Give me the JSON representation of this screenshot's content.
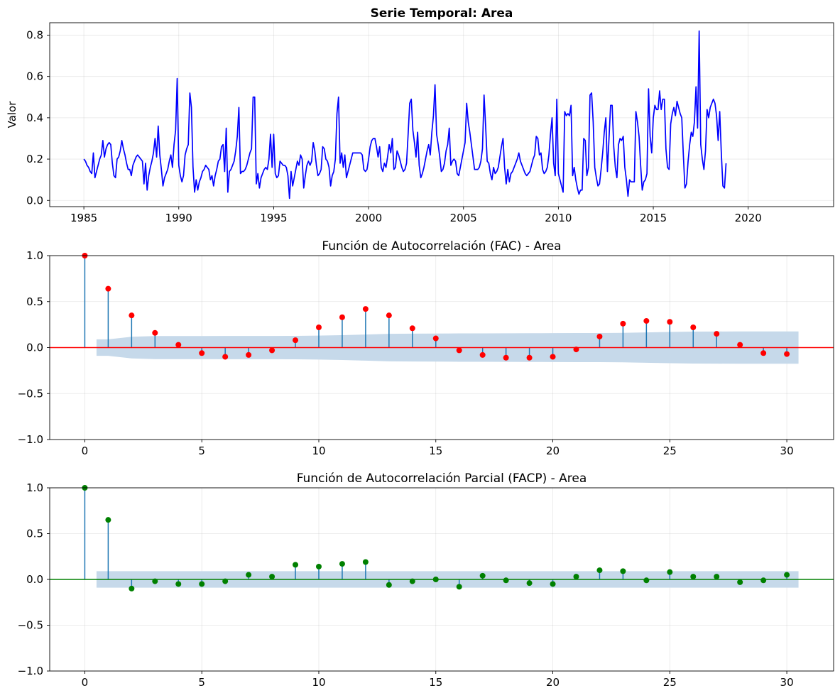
{
  "chart_data": [
    {
      "id": "series",
      "type": "line",
      "title": "Serie Temporal: Area",
      "ylabel": "Valor",
      "xlabel": "",
      "xlim": [
        1983.2,
        2024.5
      ],
      "ylim": [
        -0.03,
        0.86
      ],
      "xticks": [
        1985,
        1990,
        1995,
        2000,
        2005,
        2010,
        2015,
        2020
      ],
      "xtick_labels": [
        "1985",
        "1990",
        "1995",
        "2000",
        "2005",
        "2010",
        "2015",
        "2020"
      ],
      "yticks": [
        0.0,
        0.2,
        0.4,
        0.6,
        0.8
      ],
      "ytick_labels": [
        "0.0",
        "0.2",
        "0.4",
        "0.6",
        "0.8"
      ],
      "grid": true,
      "series": [
        {
          "color": "#0000ff",
          "x_start": 1985.0,
          "x_step": 0.0833333,
          "values": [
            0.2,
            0.19,
            0.17,
            0.16,
            0.14,
            0.13,
            0.23,
            0.11,
            0.14,
            0.17,
            0.2,
            0.22,
            0.29,
            0.21,
            0.25,
            0.27,
            0.28,
            0.27,
            0.18,
            0.12,
            0.11,
            0.2,
            0.21,
            0.24,
            0.29,
            0.25,
            0.22,
            0.18,
            0.15,
            0.15,
            0.12,
            0.17,
            0.19,
            0.21,
            0.22,
            0.21,
            0.2,
            0.19,
            0.08,
            0.18,
            0.05,
            0.12,
            0.16,
            0.19,
            0.23,
            0.3,
            0.21,
            0.36,
            0.22,
            0.15,
            0.07,
            0.11,
            0.13,
            0.15,
            0.19,
            0.22,
            0.16,
            0.27,
            0.34,
            0.59,
            0.17,
            0.12,
            0.09,
            0.12,
            0.22,
            0.25,
            0.27,
            0.52,
            0.45,
            0.16,
            0.04,
            0.1,
            0.05,
            0.09,
            0.11,
            0.14,
            0.15,
            0.17,
            0.16,
            0.15,
            0.1,
            0.12,
            0.07,
            0.12,
            0.15,
            0.19,
            0.2,
            0.26,
            0.27,
            0.14,
            0.35,
            0.04,
            0.14,
            0.15,
            0.17,
            0.19,
            0.24,
            0.31,
            0.45,
            0.13,
            0.14,
            0.14,
            0.15,
            0.17,
            0.2,
            0.23,
            0.25,
            0.5,
            0.5,
            0.08,
            0.13,
            0.06,
            0.11,
            0.13,
            0.15,
            0.16,
            0.15,
            0.2,
            0.32,
            0.16,
            0.32,
            0.13,
            0.11,
            0.12,
            0.19,
            0.18,
            0.17,
            0.17,
            0.16,
            0.12,
            0.01,
            0.14,
            0.07,
            0.11,
            0.15,
            0.19,
            0.17,
            0.22,
            0.2,
            0.06,
            0.12,
            0.17,
            0.19,
            0.17,
            0.19,
            0.28,
            0.24,
            0.17,
            0.12,
            0.13,
            0.15,
            0.26,
            0.25,
            0.2,
            0.19,
            0.16,
            0.07,
            0.12,
            0.14,
            0.2,
            0.42,
            0.5,
            0.18,
            0.23,
            0.16,
            0.22,
            0.11,
            0.14,
            0.17,
            0.2,
            0.23,
            0.23,
            0.23,
            0.23,
            0.23,
            0.23,
            0.22,
            0.15,
            0.14,
            0.15,
            0.2,
            0.26,
            0.29,
            0.3,
            0.3,
            0.26,
            0.21,
            0.26,
            0.16,
            0.14,
            0.18,
            0.16,
            0.21,
            0.27,
            0.23,
            0.3,
            0.15,
            0.16,
            0.24,
            0.22,
            0.19,
            0.16,
            0.14,
            0.15,
            0.18,
            0.32,
            0.47,
            0.49,
            0.34,
            0.28,
            0.21,
            0.33,
            0.17,
            0.11,
            0.13,
            0.16,
            0.2,
            0.24,
            0.27,
            0.22,
            0.33,
            0.41,
            0.56,
            0.32,
            0.27,
            0.21,
            0.14,
            0.15,
            0.18,
            0.24,
            0.27,
            0.35,
            0.17,
            0.19,
            0.2,
            0.19,
            0.13,
            0.12,
            0.16,
            0.2,
            0.24,
            0.28,
            0.47,
            0.38,
            0.33,
            0.27,
            0.21,
            0.15,
            0.15,
            0.15,
            0.16,
            0.19,
            0.25,
            0.51,
            0.36,
            0.19,
            0.18,
            0.13,
            0.1,
            0.16,
            0.13,
            0.14,
            0.16,
            0.21,
            0.26,
            0.3,
            0.16,
            0.08,
            0.15,
            0.09,
            0.13,
            0.14,
            0.16,
            0.18,
            0.2,
            0.23,
            0.19,
            0.17,
            0.15,
            0.13,
            0.12,
            0.13,
            0.14,
            0.17,
            0.2,
            0.22,
            0.31,
            0.3,
            0.22,
            0.23,
            0.15,
            0.13,
            0.14,
            0.16,
            0.22,
            0.32,
            0.4,
            0.18,
            0.12,
            0.49,
            0.13,
            0.1,
            0.07,
            0.04,
            0.43,
            0.41,
            0.42,
            0.41,
            0.46,
            0.12,
            0.16,
            0.1,
            0.06,
            0.03,
            0.05,
            0.05,
            0.3,
            0.29,
            0.12,
            0.16,
            0.51,
            0.52,
            0.38,
            0.16,
            0.11,
            0.07,
            0.08,
            0.15,
            0.23,
            0.33,
            0.4,
            0.14,
            0.3,
            0.46,
            0.46,
            0.26,
            0.16,
            0.11,
            0.27,
            0.3,
            0.29,
            0.31,
            0.16,
            0.1,
            0.02,
            0.1,
            0.09,
            0.09,
            0.09,
            0.43,
            0.38,
            0.31,
            0.17,
            0.05,
            0.09,
            0.1,
            0.13,
            0.54,
            0.31,
            0.23,
            0.4,
            0.46,
            0.44,
            0.44,
            0.53,
            0.44,
            0.49,
            0.49,
            0.25,
            0.16,
            0.15,
            0.37,
            0.42,
            0.45,
            0.41,
            0.48,
            0.45,
            0.42,
            0.4,
            0.22,
            0.06,
            0.08,
            0.19,
            0.27,
            0.33,
            0.31,
            0.38,
            0.55,
            0.35,
            0.82,
            0.27,
            0.2,
            0.15,
            0.24,
            0.44,
            0.4,
            0.45,
            0.47,
            0.49,
            0.47,
            0.41,
            0.29,
            0.43,
            0.23,
            0.07,
            0.06,
            0.18
          ]
        }
      ]
    },
    {
      "id": "fac",
      "type": "stem",
      "title": "Función de Autocorrelación (FAC) - Area",
      "xlabel": "",
      "ylabel": "",
      "xlim": [
        -1.5,
        32
      ],
      "ylim": [
        -1.0,
        1.0
      ],
      "xticks": [
        0,
        5,
        10,
        15,
        20,
        25,
        30
      ],
      "xtick_labels": [
        "0",
        "5",
        "10",
        "15",
        "20",
        "25",
        "30"
      ],
      "yticks": [
        -1.0,
        -0.5,
        0.0,
        0.5,
        1.0
      ],
      "ytick_labels": [
        "−1.0",
        "−0.5",
        "0.0",
        "0.5",
        "1.0"
      ],
      "grid": true,
      "marker_color": "#ff0000",
      "stem_color": "#1f77b4",
      "hline_color": "#ff0000",
      "band_color": "#c6d9ea",
      "lags": [
        0,
        1,
        2,
        3,
        4,
        5,
        6,
        7,
        8,
        9,
        10,
        11,
        12,
        13,
        14,
        15,
        16,
        17,
        18,
        19,
        20,
        21,
        22,
        23,
        24,
        25,
        26,
        27,
        28,
        29,
        30
      ],
      "values": [
        1.0,
        0.64,
        0.35,
        0.16,
        0.03,
        -0.06,
        -0.1,
        -0.08,
        -0.03,
        0.08,
        0.22,
        0.33,
        0.42,
        0.35,
        0.21,
        0.1,
        -0.03,
        -0.08,
        -0.11,
        -0.11,
        -0.1,
        -0.02,
        0.12,
        0.26,
        0.29,
        0.28,
        0.22,
        0.15,
        0.03,
        -0.06,
        -0.07
      ],
      "confidence_lags": [
        0.5,
        1,
        2,
        3,
        4,
        5,
        6,
        7,
        8,
        9,
        10,
        11,
        12,
        13,
        14,
        15,
        16,
        17,
        18,
        19,
        20,
        21,
        22,
        23,
        24,
        25,
        26,
        27,
        28,
        29,
        30.5
      ],
      "confidence": [
        0.09,
        0.09,
        0.118,
        0.125,
        0.125,
        0.125,
        0.126,
        0.126,
        0.126,
        0.127,
        0.13,
        0.135,
        0.142,
        0.15,
        0.152,
        0.153,
        0.154,
        0.154,
        0.155,
        0.156,
        0.157,
        0.158,
        0.158,
        0.16,
        0.165,
        0.17,
        0.174,
        0.175,
        0.176,
        0.176,
        0.176
      ]
    },
    {
      "id": "facp",
      "type": "stem",
      "title": "Función de Autocorrelación Parcial (FACP) - Area",
      "xlabel": "",
      "ylabel": "",
      "xlim": [
        -1.5,
        32
      ],
      "ylim": [
        -1.0,
        1.0
      ],
      "xticks": [
        0,
        5,
        10,
        15,
        20,
        25,
        30
      ],
      "xtick_labels": [
        "0",
        "5",
        "10",
        "15",
        "20",
        "25",
        "30"
      ],
      "yticks": [
        -1.0,
        -0.5,
        0.0,
        0.5,
        1.0
      ],
      "ytick_labels": [
        "−1.0",
        "−0.5",
        "0.0",
        "0.5",
        "1.0"
      ],
      "grid": true,
      "marker_color": "#008000",
      "stem_color": "#1f77b4",
      "hline_color": "#008000",
      "band_color": "#c6d9ea",
      "lags": [
        0,
        1,
        2,
        3,
        4,
        5,
        6,
        7,
        8,
        9,
        10,
        11,
        12,
        13,
        14,
        15,
        16,
        17,
        18,
        19,
        20,
        21,
        22,
        23,
        24,
        25,
        26,
        27,
        28,
        29,
        30
      ],
      "values": [
        1.0,
        0.65,
        -0.1,
        -0.02,
        -0.05,
        -0.05,
        -0.02,
        0.05,
        0.03,
        0.16,
        0.14,
        0.17,
        0.19,
        -0.06,
        -0.02,
        0.0,
        -0.08,
        0.04,
        -0.01,
        -0.04,
        -0.05,
        0.03,
        0.1,
        0.09,
        -0.01,
        0.08,
        0.03,
        0.03,
        -0.03,
        -0.01,
        0.05
      ],
      "confidence_lags": [
        0.5,
        30.5
      ],
      "confidence": [
        0.09,
        0.09
      ]
    }
  ]
}
